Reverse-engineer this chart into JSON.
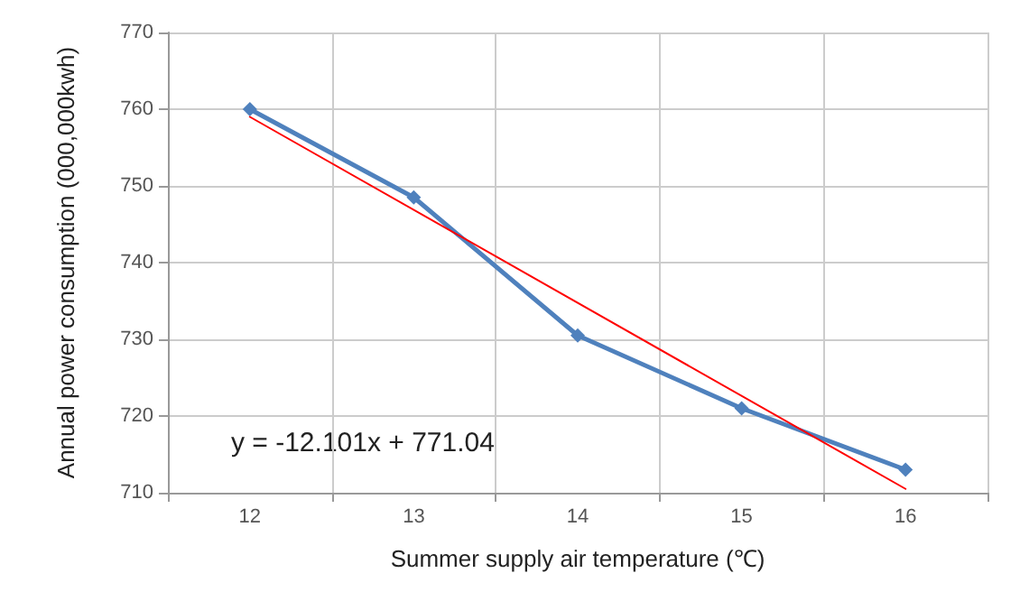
{
  "chart_data": {
    "type": "line",
    "xlabel": "Summer supply air temperature (℃)",
    "ylabel": "Annual power consumption (000,000kwh)",
    "categories": [
      "12",
      "13",
      "14",
      "15",
      "16"
    ],
    "series": [
      {
        "color": "#4f81bd",
        "values": [
          760,
          748.5,
          730.5,
          721,
          713
        ],
        "marker": "diamond"
      },
      {
        "type": "line",
        "color": "#ff0000",
        "x": [
          "12",
          "16"
        ],
        "values": [
          759,
          710.5
        ],
        "marker": "none"
      }
    ],
    "ylim": [
      710,
      770
    ],
    "yticks": [
      710,
      720,
      730,
      740,
      750,
      760,
      770
    ],
    "grid": true,
    "annotations": [
      "y = -12.101x + 771.04"
    ]
  }
}
